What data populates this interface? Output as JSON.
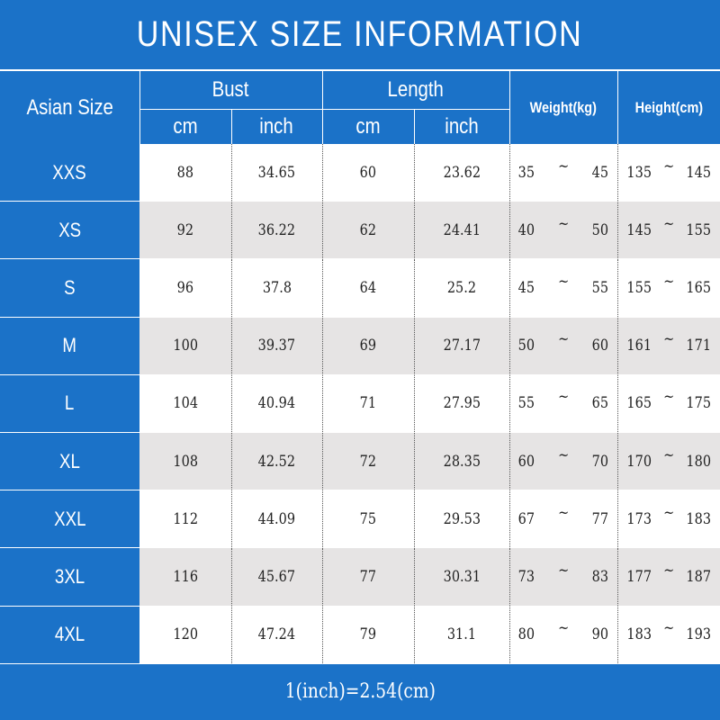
{
  "title": "UNISEX SIZE INFORMATION",
  "header": {
    "size": "Asian Size",
    "groups": [
      {
        "label": "Bust",
        "units": [
          "cm",
          "inch"
        ]
      },
      {
        "label": "Length",
        "units": [
          "cm",
          "inch"
        ]
      }
    ],
    "weight": "Weight(kg)",
    "height": "Height(cm)"
  },
  "separator": "~",
  "rows": [
    {
      "size": "XXS",
      "bust": [
        "88",
        "34.65"
      ],
      "length": [
        "60",
        "23.62"
      ],
      "weight": [
        "35",
        "45"
      ],
      "height": [
        "135",
        "145"
      ]
    },
    {
      "size": "XS",
      "bust": [
        "92",
        "36.22"
      ],
      "length": [
        "62",
        "24.41"
      ],
      "weight": [
        "40",
        "50"
      ],
      "height": [
        "145",
        "155"
      ]
    },
    {
      "size": "S",
      "bust": [
        "96",
        "37.8"
      ],
      "length": [
        "64",
        "25.2"
      ],
      "weight": [
        "45",
        "55"
      ],
      "height": [
        "155",
        "165"
      ]
    },
    {
      "size": "M",
      "bust": [
        "100",
        "39.37"
      ],
      "length": [
        "69",
        "27.17"
      ],
      "weight": [
        "50",
        "60"
      ],
      "height": [
        "161",
        "171"
      ]
    },
    {
      "size": "L",
      "bust": [
        "104",
        "40.94"
      ],
      "length": [
        "71",
        "27.95"
      ],
      "weight": [
        "55",
        "65"
      ],
      "height": [
        "165",
        "175"
      ]
    },
    {
      "size": "XL",
      "bust": [
        "108",
        "42.52"
      ],
      "length": [
        "72",
        "28.35"
      ],
      "weight": [
        "60",
        "70"
      ],
      "height": [
        "170",
        "180"
      ]
    },
    {
      "size": "XXL",
      "bust": [
        "112",
        "44.09"
      ],
      "length": [
        "75",
        "29.53"
      ],
      "weight": [
        "67",
        "77"
      ],
      "height": [
        "173",
        "183"
      ]
    },
    {
      "size": "3XL",
      "bust": [
        "116",
        "45.67"
      ],
      "length": [
        "77",
        "30.31"
      ],
      "weight": [
        "73",
        "83"
      ],
      "height": [
        "177",
        "187"
      ]
    },
    {
      "size": "4XL",
      "bust": [
        "120",
        "47.24"
      ],
      "length": [
        "79",
        "31.1"
      ],
      "weight": [
        "80",
        "90"
      ],
      "height": [
        "183",
        "193"
      ]
    }
  ],
  "footer": "1(inch)=2.54(cm)"
}
